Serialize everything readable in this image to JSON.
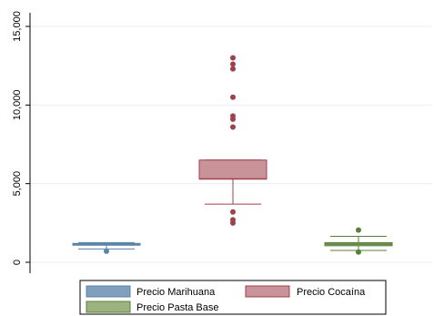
{
  "chart_data": {
    "type": "box",
    "title": "",
    "xlabel": "",
    "ylabel": "",
    "ylim": [
      0,
      15000
    ],
    "yticks": [
      0,
      5000,
      10000,
      15000
    ],
    "ytick_labels": [
      "0",
      "5,000",
      "10,000",
      "15,000"
    ],
    "grid": true,
    "legend_position": "bottom",
    "series": [
      {
        "name": "Precio Marihuana",
        "color": "#5b83a6",
        "fill": "#7f9fbd",
        "q1": 1100,
        "median": 1150,
        "q3": 1200,
        "whisker_low": 850,
        "whisker_high": 1250,
        "outliers": [
          700
        ]
      },
      {
        "name": "Precio Cocaína",
        "color": "#a0404a",
        "fill": "#c89499",
        "q1": 5300,
        "median": 5300,
        "q3": 6500,
        "whisker_low": 3700,
        "whisker_high": 6500,
        "outliers": [
          2500,
          2700,
          3200,
          8600,
          9100,
          9300,
          10500,
          12300,
          12600,
          13000
        ]
      },
      {
        "name": "Precio Pasta Base",
        "color": "#5a7f3a",
        "fill": "#9cb37f",
        "q1": 1050,
        "median": 1150,
        "q3": 1250,
        "whisker_low": 750,
        "whisker_high": 1650,
        "outliers": [
          650,
          2050
        ]
      }
    ]
  }
}
